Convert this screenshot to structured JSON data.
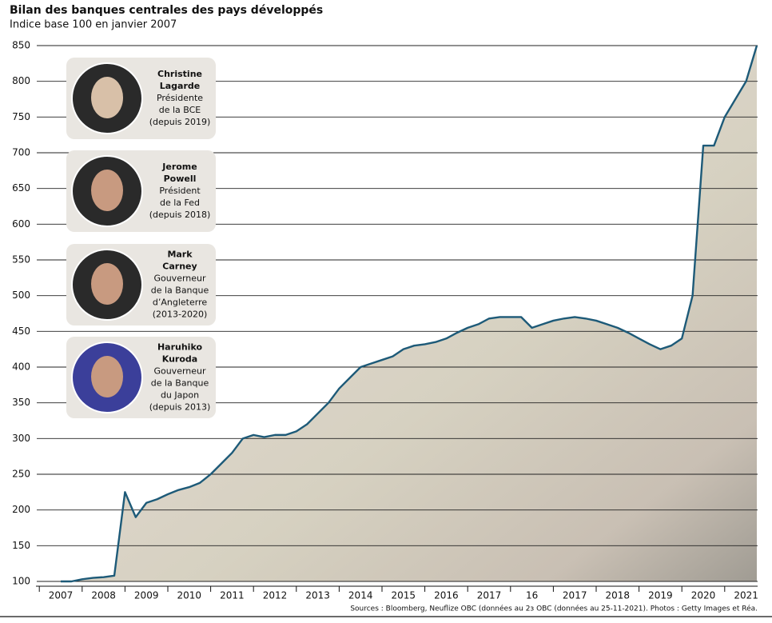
{
  "chart_data": {
    "type": "line",
    "title": "Bilan des banques centrales des pays développés",
    "subtitle": "Indice base 100 en janvier 2007",
    "source": "Sources : Bloomberg, Neuflize OBC (données au 2ɜ OBC (données au 25-11-2021). Photos : Getty Images et Réa.",
    "categories": [
      "2007",
      null,
      null,
      null,
      "2008",
      null,
      null,
      null,
      "2009",
      null,
      null,
      null,
      "2010",
      null,
      null,
      null,
      "2011",
      null,
      null,
      null,
      "2012",
      null,
      null,
      null,
      "2013",
      null,
      null,
      null,
      "2014",
      null,
      null,
      null,
      "2015",
      null,
      null,
      null,
      "2016",
      null,
      null,
      null,
      "2017",
      null,
      null,
      null,
      "16",
      null,
      null,
      null,
      "2017",
      null,
      null,
      null,
      "2018",
      null,
      null,
      null,
      "2019",
      null,
      null,
      null,
      "2020",
      null,
      null,
      null,
      "2021",
      null
    ],
    "series": [
      {
        "color": "#1d5a78",
        "values": [
          100,
          100,
          103,
          105,
          106,
          108,
          225,
          190,
          210,
          215,
          222,
          228,
          232,
          238,
          250,
          265,
          280,
          300,
          305,
          302,
          305,
          305,
          310,
          320,
          335,
          350,
          370,
          385,
          400,
          405,
          410,
          415,
          425,
          430,
          432,
          435,
          440,
          448,
          455,
          460,
          468,
          470,
          470,
          470,
          455,
          460,
          465,
          468,
          470,
          468,
          465,
          460,
          455,
          448,
          440,
          432,
          425,
          430,
          440,
          500,
          710,
          710,
          750,
          775,
          800,
          850
        ]
      }
    ],
    "ylim": [
      100,
      850
    ],
    "yticks": [
      100,
      150,
      200,
      250,
      300,
      350,
      400,
      450,
      500,
      550,
      600,
      650,
      700,
      750,
      800,
      850
    ],
    "grid": true
  },
  "portraits": [
    {
      "lines": [
        "Christine",
        "Lagarde",
        "Présidente",
        "de la BCE",
        "(depuis 2019)"
      ]
    },
    {
      "lines": [
        "Jerome",
        "Powell",
        "Président",
        "de la Fed",
        "(depuis 2018)"
      ]
    },
    {
      "lines": [
        "Mark",
        "Carney",
        "Gouverneur",
        "de la Banque",
        "d’Angleterre",
        "(2013-2020)"
      ]
    },
    {
      "lines": [
        "Haruhiko",
        "Kuroda",
        "Gouverneur",
        "de la Banque",
        "du Japon",
        "(depuis 2013)"
      ]
    }
  ]
}
